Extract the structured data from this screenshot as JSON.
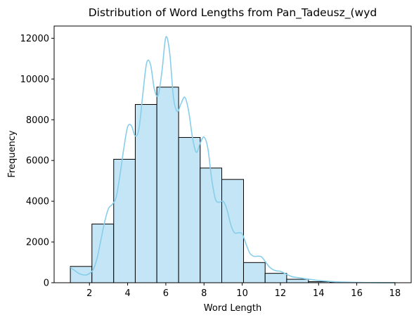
{
  "chart_data": {
    "type": "bar",
    "title": "Distribution of Word Lengths from Pan_Tadeusz_(wyd",
    "xlabel": "Word Length",
    "ylabel": "Frequency",
    "xlim": [
      0.15,
      18.85
    ],
    "ylim": [
      0,
      12600
    ],
    "xticks": [
      2,
      4,
      6,
      8,
      10,
      12,
      14,
      16,
      18
    ],
    "yticks": [
      0,
      2000,
      4000,
      6000,
      8000,
      10000,
      12000
    ],
    "bins": [
      {
        "x0": 1.0,
        "x1": 2.13,
        "count": 800
      },
      {
        "x0": 2.13,
        "x1": 3.27,
        "count": 2880
      },
      {
        "x0": 3.27,
        "x1": 4.4,
        "count": 6060
      },
      {
        "x0": 4.4,
        "x1": 5.53,
        "count": 8750
      },
      {
        "x0": 5.53,
        "x1": 6.67,
        "count": 9600
      },
      {
        "x0": 6.67,
        "x1": 7.8,
        "count": 7130
      },
      {
        "x0": 7.8,
        "x1": 8.93,
        "count": 5630
      },
      {
        "x0": 8.93,
        "x1": 10.07,
        "count": 5070
      },
      {
        "x0": 10.07,
        "x1": 11.2,
        "count": 990
      },
      {
        "x0": 11.2,
        "x1": 12.33,
        "count": 460
      },
      {
        "x0": 12.33,
        "x1": 13.47,
        "count": 170
      },
      {
        "x0": 13.47,
        "x1": 14.6,
        "count": 50
      },
      {
        "x0": 14.6,
        "x1": 15.73,
        "count": 20
      },
      {
        "x0": 15.73,
        "x1": 16.87,
        "count": 8
      },
      {
        "x0": 16.87,
        "x1": 18.0,
        "count": 5
      }
    ],
    "kde": {
      "x": [
        1.0,
        1.2,
        1.5,
        1.8,
        2.0,
        2.2,
        2.4,
        2.6,
        2.8,
        3.0,
        3.2,
        3.4,
        3.6,
        3.8,
        4.0,
        4.2,
        4.4,
        4.6,
        4.8,
        5.0,
        5.2,
        5.4,
        5.6,
        5.8,
        6.0,
        6.2,
        6.4,
        6.6,
        6.8,
        7.0,
        7.2,
        7.4,
        7.6,
        7.8,
        8.0,
        8.2,
        8.4,
        8.6,
        8.8,
        9.0,
        9.2,
        9.4,
        9.6,
        9.8,
        10.0,
        10.2,
        10.4,
        10.6,
        10.8,
        11.0,
        11.2,
        11.4,
        11.6,
        11.8,
        12.0,
        12.3,
        12.6,
        13.0,
        13.5,
        14.0,
        14.5,
        15.0,
        16.0,
        17.0,
        18.0
      ],
      "y": [
        750,
        620,
        430,
        380,
        450,
        650,
        1200,
        2100,
        3000,
        3650,
        3850,
        4200,
        5300,
        6600,
        7650,
        7700,
        7200,
        7600,
        9300,
        10800,
        10700,
        9500,
        9200,
        10400,
        12050,
        11300,
        9100,
        8400,
        8800,
        9100,
        8400,
        7100,
        6400,
        6850,
        7150,
        6600,
        5100,
        4100,
        3950,
        4000,
        3600,
        2850,
        2450,
        2450,
        2400,
        1900,
        1450,
        1300,
        1300,
        1280,
        1050,
        800,
        650,
        580,
        560,
        430,
        300,
        240,
        170,
        110,
        70,
        40,
        15,
        5,
        2
      ]
    },
    "colors": {
      "bar_fill": "#c4e5f5",
      "bar_edge": "#000000",
      "kde_line": "#87ceeb"
    },
    "grid": false,
    "legend": "none"
  }
}
